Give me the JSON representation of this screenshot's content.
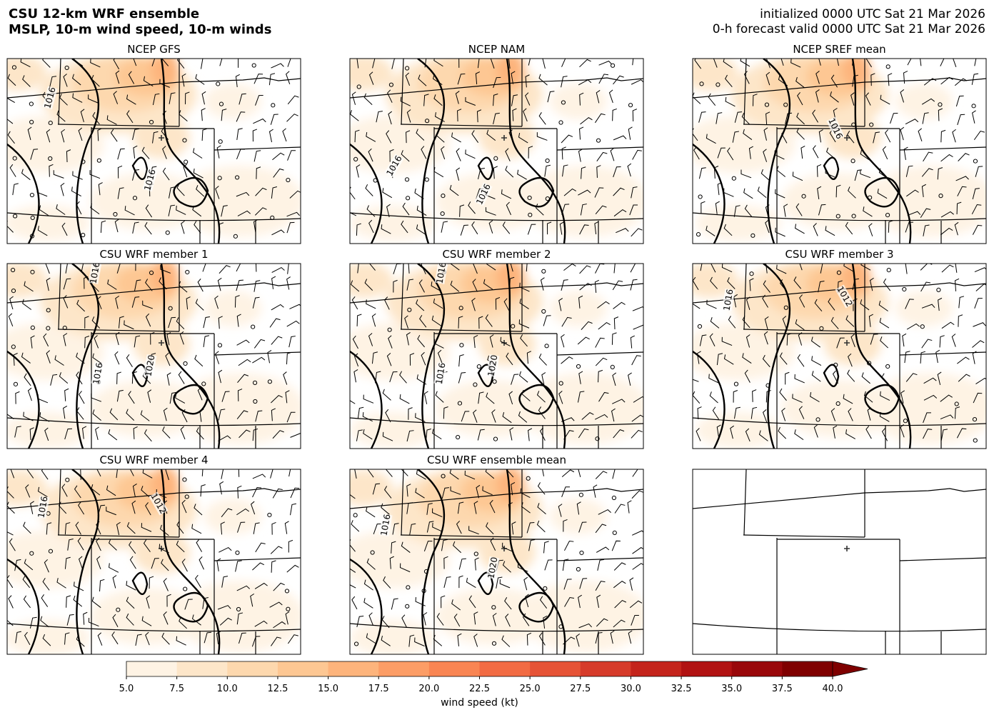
{
  "header": {
    "title": [
      "CSU 12-km WRF ensemble",
      "MSLP, 10-m wind speed, 10-m winds"
    ],
    "init_line": "initialized 0000 UTC Sat 21 Mar 2026",
    "valid_line": "0-h forecast valid 0000 UTC Sat 21 Mar 2026"
  },
  "panels": [
    {
      "title": "NCEP GFS",
      "contour_labels": [
        "1016",
        "1016"
      ]
    },
    {
      "title": "NCEP NAM",
      "contour_labels": [
        "1016",
        "1016"
      ]
    },
    {
      "title": "NCEP SREF mean",
      "contour_labels": [
        "1016"
      ]
    },
    {
      "title": "CSU WRF member 1",
      "contour_labels": [
        "1016",
        "1016",
        "1020"
      ]
    },
    {
      "title": "CSU WRF member 2",
      "contour_labels": [
        "1016",
        "1016",
        "1020"
      ]
    },
    {
      "title": "CSU WRF member 3",
      "contour_labels": [
        "1016",
        "1012"
      ]
    },
    {
      "title": "CSU WRF member 4",
      "contour_labels": [
        "1016",
        "1012"
      ]
    },
    {
      "title": "CSU WRF ensemble mean",
      "contour_labels": [
        "1016",
        "1020"
      ]
    }
  ],
  "colorbar": {
    "label": "wind speed (kt)",
    "ticks": [
      {
        "value": 5,
        "label": "5.0"
      },
      {
        "value": 7.5,
        "label": "7.5"
      },
      {
        "value": 10,
        "label": "10.0"
      },
      {
        "value": 12.5,
        "label": "12.5"
      },
      {
        "value": 15,
        "label": "15.0"
      },
      {
        "value": 17.5,
        "label": "17.5"
      },
      {
        "value": 20,
        "label": "20.0"
      },
      {
        "value": 22.5,
        "label": "22.5"
      },
      {
        "value": 25,
        "label": "25.0"
      },
      {
        "value": 27.5,
        "label": "27.5"
      },
      {
        "value": 30,
        "label": "30.0"
      },
      {
        "value": 32.5,
        "label": "32.5"
      },
      {
        "value": 35,
        "label": "35.0"
      },
      {
        "value": 37.5,
        "label": "37.5"
      },
      {
        "value": 40,
        "label": "40.0"
      }
    ],
    "colors": [
      "#fef3e4",
      "#fde6c9",
      "#fdd8ae",
      "#fdc793",
      "#fdb47c",
      "#fc9d66",
      "#f98553",
      "#f26b43",
      "#e65336",
      "#d63b2a",
      "#c4241c",
      "#b11212",
      "#99070a",
      "#7f0000"
    ]
  }
}
